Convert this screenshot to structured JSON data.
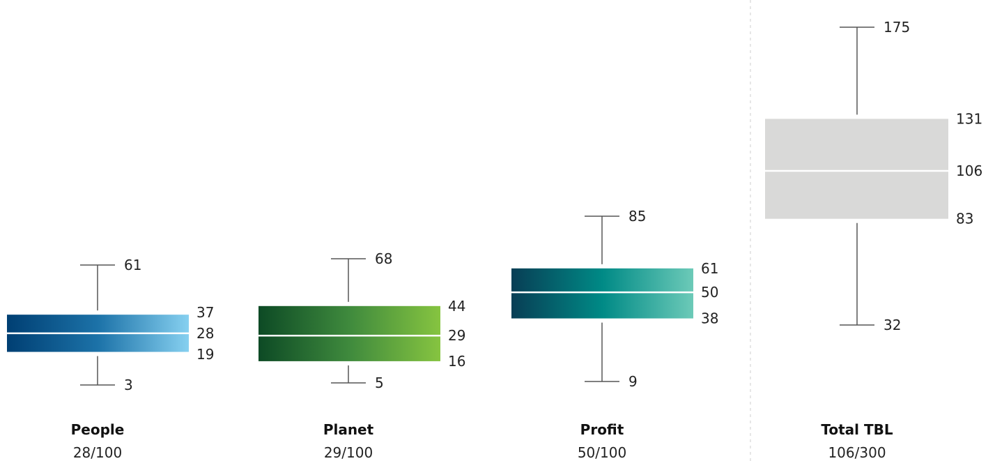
{
  "chart_data": {
    "type": "boxplot",
    "series": [
      {
        "label": "People",
        "score": "28/100",
        "min": 3,
        "q1": 19,
        "median": 28,
        "q3": 37,
        "max": 61,
        "colors": [
          "#003f73",
          "#1c72a8",
          "#86d0f0"
        ]
      },
      {
        "label": "Planet",
        "score": "29/100",
        "min": 5,
        "q1": 16,
        "median": 29,
        "q3": 44,
        "max": 68,
        "colors": [
          "#0d4a25",
          "#3f8a3d",
          "#86c440"
        ]
      },
      {
        "label": "Profit",
        "score": "50/100",
        "min": 9,
        "q1": 38,
        "median": 50,
        "q3": 61,
        "max": 85,
        "colors": [
          "#083e55",
          "#008a86",
          "#6ccab8"
        ]
      },
      {
        "label": "Total TBL",
        "score": "106/300",
        "min": 32,
        "q1": 83,
        "median": 106,
        "q3": 131,
        "max": 175,
        "colors": [
          "#d9d9d8",
          "#d9d9d8",
          "#d9d9d8"
        ]
      }
    ]
  }
}
